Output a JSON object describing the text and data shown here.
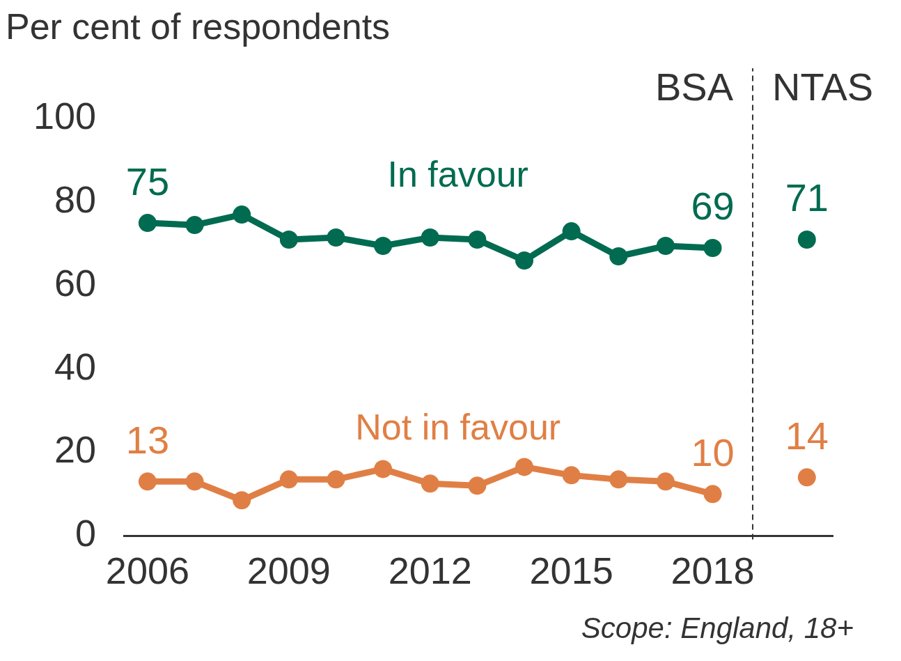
{
  "chart_data": {
    "type": "line",
    "ylabel": "Per cent of respondents",
    "xlim": [
      2005.5,
      2020.55
    ],
    "xticks": [
      2006,
      2009,
      2012,
      2015,
      2018
    ],
    "ylim": [
      0,
      100
    ],
    "yticks": [
      0,
      20,
      40,
      60,
      80,
      100
    ],
    "grid": false,
    "legend": false,
    "marker": "circle",
    "line_style": "solid",
    "series": [
      {
        "name": "In favour",
        "color": "#006b50",
        "x": [
          2006,
          2007,
          2008,
          2009,
          2010,
          2011,
          2012,
          2013,
          2014,
          2015,
          2016,
          2017,
          2018
        ],
        "values": [
          75,
          74.5,
          77,
          71,
          71.5,
          69.5,
          71.5,
          71,
          66,
          73,
          67,
          69.5,
          69
        ],
        "value_labels": [
          "75",
          null,
          null,
          null,
          null,
          null,
          null,
          null,
          null,
          null,
          null,
          null,
          "69"
        ]
      },
      {
        "name": "Not in favour",
        "color": "#e07f45",
        "x": [
          2006,
          2007,
          2008,
          2009,
          2010,
          2011,
          2012,
          2013,
          2014,
          2015,
          2016,
          2017,
          2018
        ],
        "values": [
          13,
          13,
          8.5,
          13.5,
          13.5,
          16,
          12.5,
          12,
          16.5,
          14.5,
          13.5,
          13,
          10
        ],
        "value_labels": [
          "13",
          null,
          null,
          null,
          null,
          null,
          null,
          null,
          null,
          null,
          null,
          null,
          "10"
        ]
      },
      {
        "type": "scatter",
        "color": "#006b50",
        "x": [
          2020
        ],
        "values": [
          71
        ],
        "value_labels": [
          "71"
        ]
      },
      {
        "type": "scatter",
        "color": "#e07f45",
        "x": [
          2020
        ],
        "values": [
          14
        ],
        "value_labels": [
          "14"
        ]
      }
    ],
    "ref_lines": [
      {
        "axis": "x",
        "value": 2018.85,
        "color": "#333333",
        "line_style": "dashed"
      }
    ],
    "annotations": [
      "BSA",
      "NTAS",
      "Scope: England, 18+"
    ]
  }
}
